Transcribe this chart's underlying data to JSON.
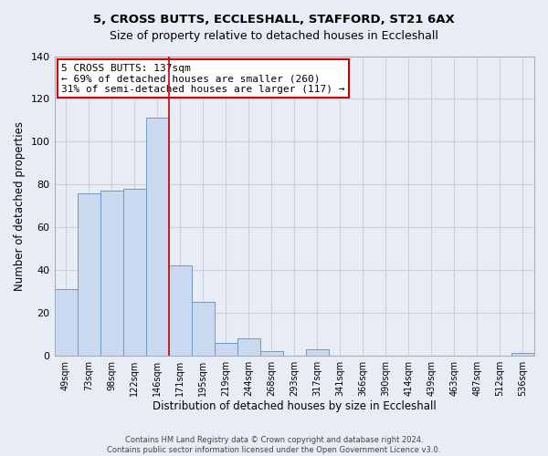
{
  "title1": "5, CROSS BUTTS, ECCLESHALL, STAFFORD, ST21 6AX",
  "title2": "Size of property relative to detached houses in Eccleshall",
  "xlabel": "Distribution of detached houses by size in Eccleshall",
  "ylabel": "Number of detached properties",
  "bar_labels": [
    "49sqm",
    "73sqm",
    "98sqm",
    "122sqm",
    "146sqm",
    "171sqm",
    "195sqm",
    "219sqm",
    "244sqm",
    "268sqm",
    "293sqm",
    "317sqm",
    "341sqm",
    "366sqm",
    "390sqm",
    "414sqm",
    "439sqm",
    "463sqm",
    "487sqm",
    "512sqm",
    "536sqm"
  ],
  "bar_values": [
    31,
    76,
    77,
    78,
    111,
    42,
    25,
    6,
    8,
    2,
    0,
    3,
    0,
    0,
    0,
    0,
    0,
    0,
    0,
    0,
    1
  ],
  "bar_color": "#c9d9ef",
  "bar_edge_color": "#7098c4",
  "grid_color": "#c8d0e0",
  "background_color": "#e8edf5",
  "vline_x_idx": 4.5,
  "vline_color": "#cc0000",
  "annotation_line1": "5 CROSS BUTTS: 137sqm",
  "annotation_line2": "← 69% of detached houses are smaller (260)",
  "annotation_line3": "31% of semi-detached houses are larger (117) →",
  "annotation_box_color": "#ffffff",
  "annotation_box_edgecolor": "#cc0000",
  "ylim": [
    0,
    140
  ],
  "yticks": [
    0,
    20,
    40,
    60,
    80,
    100,
    120,
    140
  ],
  "footer1": "Contains HM Land Registry data © Crown copyright and database right 2024.",
  "footer2": "Contains public sector information licensed under the Open Government Licence v3.0."
}
